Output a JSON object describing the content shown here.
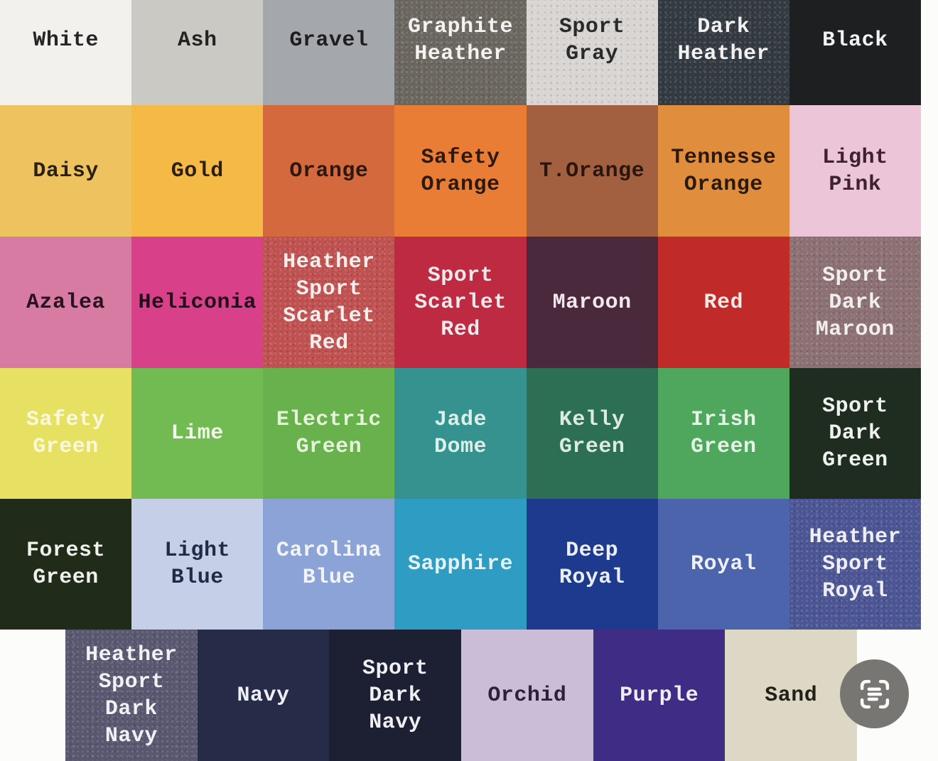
{
  "palette": {
    "grid": {
      "rows": [
        {
          "cells": [
            {
              "label": "White",
              "bg": "#f2f1ee",
              "fg": "#262626"
            },
            {
              "label": "Ash",
              "bg": "#cac9c4",
              "fg": "#232323"
            },
            {
              "label": "Gravel",
              "bg": "#a4a7ab",
              "fg": "#1e1e1e"
            },
            {
              "label": "Graphite\nHeather",
              "bg": "#6b6760",
              "fg": "#f4f3f1",
              "heather": true
            },
            {
              "label": "Sport\nGray",
              "bg": "#d8d5d2",
              "fg": "#2a2a2a",
              "heather": true
            },
            {
              "label": "Dark\nHeather",
              "bg": "#343a41",
              "fg": "#f2f2f2",
              "heather": true
            },
            {
              "label": "Black",
              "bg": "#1d1f21",
              "fg": "#f2f2f2"
            }
          ]
        },
        {
          "cells": [
            {
              "label": "Daisy",
              "bg": "#eec25f",
              "fg": "#292012"
            },
            {
              "label": "Gold",
              "bg": "#f4ba45",
              "fg": "#2b2010"
            },
            {
              "label": "Orange",
              "bg": "#d3693c",
              "fg": "#2d1810"
            },
            {
              "label": "Safety\nOrange",
              "bg": "#ea7d35",
              "fg": "#2d1a0e"
            },
            {
              "label": "T.Orange",
              "bg": "#a26040",
              "fg": "#2b160e"
            },
            {
              "label": "Tennesse\nOrange",
              "bg": "#e08d3e",
              "fg": "#2b1a0c"
            },
            {
              "label": "Light\nPink",
              "bg": "#edc5d9",
              "fg": "#3d2133"
            }
          ]
        },
        {
          "cells": [
            {
              "label": "Azalea",
              "bg": "#d87ba2",
              "fg": "#2b1220"
            },
            {
              "label": "Heliconia",
              "bg": "#d8418a",
              "fg": "#250d1c"
            },
            {
              "label": "Heather\nSport\nScarlet\nRed",
              "bg": "#bf5251",
              "fg": "#f6eeec",
              "heather": true
            },
            {
              "label": "Sport\nScarlet\nRed",
              "bg": "#bd2a41",
              "fg": "#f4e9ea"
            },
            {
              "label": "Maroon",
              "bg": "#4a293c",
              "fg": "#f0e8ec"
            },
            {
              "label": "Red",
              "bg": "#c02a28",
              "fg": "#f5e9e7"
            },
            {
              "label": "Sport\nDark\nMaroon",
              "bg": "#8b7173",
              "fg": "#f3eeee",
              "heather": true
            }
          ]
        },
        {
          "cells": [
            {
              "label": "Safety\nGreen",
              "bg": "#e6e163",
              "fg": "#faf8dc"
            },
            {
              "label": "Lime",
              "bg": "#72bb52",
              "fg": "#f3f8ef"
            },
            {
              "label": "Electric\nGreen",
              "bg": "#68b14c",
              "fg": "#e5f3da"
            },
            {
              "label": "Jade\nDome",
              "bg": "#35928f",
              "fg": "#dcefe9"
            },
            {
              "label": "Kelly\nGreen",
              "bg": "#2d6f55",
              "fg": "#dcebe2"
            },
            {
              "label": "Irish\nGreen",
              "bg": "#4ea75c",
              "fg": "#e6f3e7"
            },
            {
              "label": "Sport\nDark\nGreen",
              "bg": "#1f2d20",
              "fg": "#f0f2ef"
            }
          ]
        },
        {
          "cells": [
            {
              "label": "Forest\nGreen",
              "bg": "#202b19",
              "fg": "#eff1ec"
            },
            {
              "label": "Light\nBlue",
              "bg": "#c5d0e8",
              "fg": "#222b45"
            },
            {
              "label": "Carolina\nBlue",
              "bg": "#8ca3d8",
              "fg": "#f2f4fa"
            },
            {
              "label": "Sapphire",
              "bg": "#2e9cc3",
              "fg": "#e2f2f6"
            },
            {
              "label": "Deep\nRoyal",
              "bg": "#1d3a8f",
              "fg": "#eaeef8"
            },
            {
              "label": "Royal",
              "bg": "#4b64ab",
              "fg": "#edf0f8"
            },
            {
              "label": "Heather\nSport\nRoyal",
              "bg": "#4d5694",
              "fg": "#eeeff6",
              "heather": true
            }
          ]
        }
      ]
    },
    "bottom_row": {
      "cells": [
        {
          "label": "Heather\nSport\nDark\nNavy",
          "bg": "#5a5870",
          "fg": "#f1f0f4",
          "heather": true
        },
        {
          "label": "Navy",
          "bg": "#262b48",
          "fg": "#eeeff4"
        },
        {
          "label": "Sport\nDark\nNavy",
          "bg": "#1d2033",
          "fg": "#eef0f3"
        },
        {
          "label": "Orchid",
          "bg": "#cbbdd8",
          "fg": "#2b2138"
        },
        {
          "label": "Purple",
          "bg": "#3f2d85",
          "fg": "#efedf7"
        },
        {
          "label": "Sand",
          "bg": "#ddd8c5",
          "fg": "#232019"
        }
      ]
    }
  },
  "lens_button": {
    "icon": "text-scan-icon",
    "aria_label": "Scan text",
    "bg": "#787672",
    "icon_color": "#fafafa"
  }
}
